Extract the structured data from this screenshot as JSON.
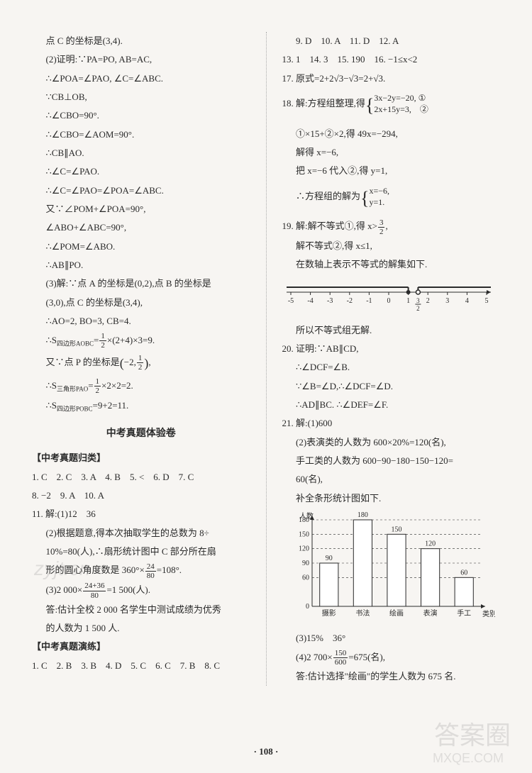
{
  "left": {
    "p1": "点 C 的坐标是(3,4).",
    "p2": "(2)证明:∵PA=PO, AB=AC,",
    "p3": "∴∠POA=∠PAO, ∠C=∠ABC.",
    "p4": "∵CB⊥OB,",
    "p5": "∴∠CBO=90°.",
    "p6": "∴∠CBO=∠AOM=90°.",
    "p7": "∴CB∥AO.",
    "p8": "∴∠C=∠PAO.",
    "p9": "∴∠C=∠PAO=∠POA=∠ABC.",
    "p10": "又∵∠POM+∠POA=90°,",
    "p11": "∠ABO+∠ABC=90°,",
    "p12": "∴∠POM=∠ABO.",
    "p13": "∴AB∥PO.",
    "p14a": "(3)解:∵点 A 的坐标是(0,2),点 B 的坐标是",
    "p14b": "(3,0),点 C 的坐标是(3,4),",
    "p15": "∴AO=2, BO=3, CB=4.",
    "p16a": "∴S",
    "p16sub": "四边形AOBC",
    "p16b": "=",
    "p16c": "×(2+4)×3=9.",
    "p17a": "又∵点 P 的坐标是",
    "p17b": "−2,",
    "p17c": ",",
    "p18a": "∴S",
    "p18sub": "三角形PAO",
    "p18b": "=",
    "p18c": "×2×2=2.",
    "p19a": "∴S",
    "p19sub": "四边形POBC",
    "p19b": "=9+2=11.",
    "title": "中考真题体验卷",
    "section1": "【中考真题归类】",
    "g1": "1. C　2. C　3. A　4. B　5. <　6. D　7. C",
    "g2": "8. −2　9. A　10. A",
    "g3": "11. 解:(1)12　36",
    "g4a": "(2)根据题意,得本次抽取学生的总数为 8÷",
    "g4b": "10%=80(人),∴扇形统计图中 C 部分所在扇",
    "g4c1": "形的圆心角度数是 360°×",
    "g4c2": "=108°.",
    "g5a": "(3)2 000×",
    "g5b": "=1 500(人).",
    "g6a": "答:估计全校 2 000 名学生中测试成绩为优秀",
    "g6b": "的人数为 1 500 人.",
    "section2": "【中考真题演练】",
    "y1": "1. C　2. B　3. B　4. D　5. C　6. C　7. B　8. C"
  },
  "right": {
    "r1": "9. D　10. A　11. D　12. A",
    "r2": "13. 1　14. 3　15. 190　16. −1≤x<2",
    "r3": "17. 原式=2+2√3−√3=2+√3.",
    "r4a": "18. 解:方程组整理,得",
    "r4b1": "3x−2y=−20, ①",
    "r4b2": "2x+15y=3,　②",
    "r5": "①×15+②×2,得 49x=−294,",
    "r6": "解得 x=−6,",
    "r7": "把 x=−6 代入②,得 y=1,",
    "r8a": "∴方程组的解为",
    "r8b1": "x=−6,",
    "r8b2": "y=1.",
    "r9a": "19. 解:解不等式①,得 x>",
    "r9b": ",",
    "r10": "解不等式②,得 x≤1,",
    "r11": "在数轴上表示不等式的解集如下.",
    "numberline": {
      "ticks": [
        -5,
        -4,
        -3,
        -2,
        -1,
        0,
        1,
        2,
        3,
        4,
        5
      ],
      "frac_label": "3/2",
      "frac_pos": 1.5,
      "left_hollow_at": 1.5,
      "right_solid_at": 1,
      "line_color": "#2a2a2a"
    },
    "r12": "所以不等式组无解.",
    "r13": "20. 证明:∵AB∥CD,",
    "r14": "∴∠DCF=∠B.",
    "r15": "∵∠B=∠D,∴∠DCF=∠D.",
    "r16": "∴AD∥BC. ∴∠DEF=∠F.",
    "r17": "21. 解:(1)600",
    "r18": "(2)表演类的人数为 600×20%=120(名),",
    "r19a": "手工类的人数为 600−90−180−150−120=",
    "r19b": "60(名),",
    "r20": "补全条形统计图如下.",
    "barchart": {
      "ylabel": "人数",
      "xlabel": "类别",
      "ymax": 180,
      "yticks": [
        60,
        90,
        120,
        150,
        180
      ],
      "bars": [
        {
          "label": "摄影",
          "value": 90
        },
        {
          "label": "书法",
          "value": 180
        },
        {
          "label": "绘画",
          "value": 150
        },
        {
          "label": "表演",
          "value": 120
        },
        {
          "label": "手工",
          "value": 60
        }
      ],
      "bar_color": "#ffffff",
      "bar_stroke": "#2a2a2a",
      "grid_color": "#2a2a2a",
      "bg": "#f7f5f2"
    },
    "r21": "(3)15%　36°",
    "r22a": "(4)2 700×",
    "r22b": "=675(名),",
    "r23": "答:估计选择\"绘画\"的学生人数为 675 名."
  },
  "footer": "· 108 ·",
  "wm1": "zyjt.cn",
  "wm2": "答案圈",
  "wm3": "MXQE.COM"
}
